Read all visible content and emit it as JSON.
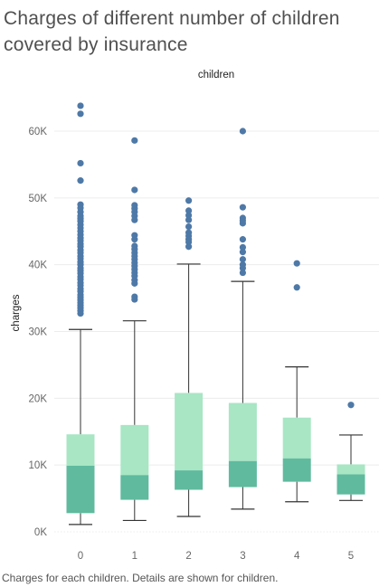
{
  "title": "Charges of different number of children covered by insurance",
  "caption": "Charges for each children.  Details are shown for children.",
  "colors": {
    "upper_box": "#a8e6c4",
    "lower_box": "#5fba9e",
    "outlier": "#4e79a7",
    "whisker": "#333333",
    "grid": "#ececec"
  },
  "chart_data": {
    "type": "box",
    "title": "Charges of different number of children covered by insurance",
    "xlabel": "children",
    "ylabel": "charges",
    "ylim": [
      0,
      65000
    ],
    "y_ticks": [
      0,
      10000,
      20000,
      30000,
      40000,
      50000,
      60000
    ],
    "y_tick_labels": [
      "0K",
      "10K",
      "20K",
      "30K",
      "40K",
      "50K",
      "60K"
    ],
    "grid": true,
    "categories": [
      "0",
      "1",
      "2",
      "3",
      "4",
      "5"
    ],
    "boxes": [
      {
        "category": "0",
        "whisker_low": 1100,
        "q1": 2800,
        "median": 9900,
        "q3": 14600,
        "whisker_high": 30300,
        "outliers": [
          63800,
          62600,
          55200,
          52600,
          49000,
          48500,
          47900,
          47300,
          46900,
          46500,
          46000,
          45500,
          45000,
          44500,
          44000,
          43600,
          43100,
          42700,
          42200,
          41800,
          41300,
          40900,
          40400,
          40000,
          39500,
          39100,
          38700,
          38200,
          37800,
          37300,
          36900,
          36400,
          36000,
          35500,
          35100,
          34700,
          34300,
          33900,
          33500,
          33100,
          32700
        ]
      },
      {
        "category": "1",
        "whisker_low": 1700,
        "q1": 4800,
        "median": 8500,
        "q3": 16000,
        "whisker_high": 31600,
        "outliers": [
          58600,
          51200,
          48900,
          48400,
          47900,
          47300,
          46700,
          44400,
          43800,
          42800,
          42300,
          41800,
          41300,
          40800,
          40300,
          39800,
          39300,
          38800,
          38300,
          37700,
          37200,
          35200,
          34800
        ]
      },
      {
        "category": "2",
        "whisker_low": 2300,
        "q1": 6300,
        "median": 9200,
        "q3": 20800,
        "whisker_high": 40100,
        "outliers": [
          49600,
          48100,
          47400,
          46700,
          45700,
          44800,
          44300,
          43800,
          43400,
          42700
        ]
      },
      {
        "category": "3",
        "whisker_low": 3400,
        "q1": 6700,
        "median": 10600,
        "q3": 19300,
        "whisker_high": 37500,
        "outliers": [
          60000,
          48600,
          47000,
          46600,
          46200,
          43800,
          42600,
          41900,
          40800,
          40000,
          39500,
          38800
        ]
      },
      {
        "category": "4",
        "whisker_low": 4500,
        "q1": 7500,
        "median": 11000,
        "q3": 17100,
        "whisker_high": 24700,
        "outliers": [
          40200,
          36600
        ]
      },
      {
        "category": "5",
        "whisker_low": 4700,
        "q1": 5600,
        "median": 8600,
        "q3": 10100,
        "whisker_high": 14500,
        "outliers": [
          19000
        ]
      }
    ]
  }
}
